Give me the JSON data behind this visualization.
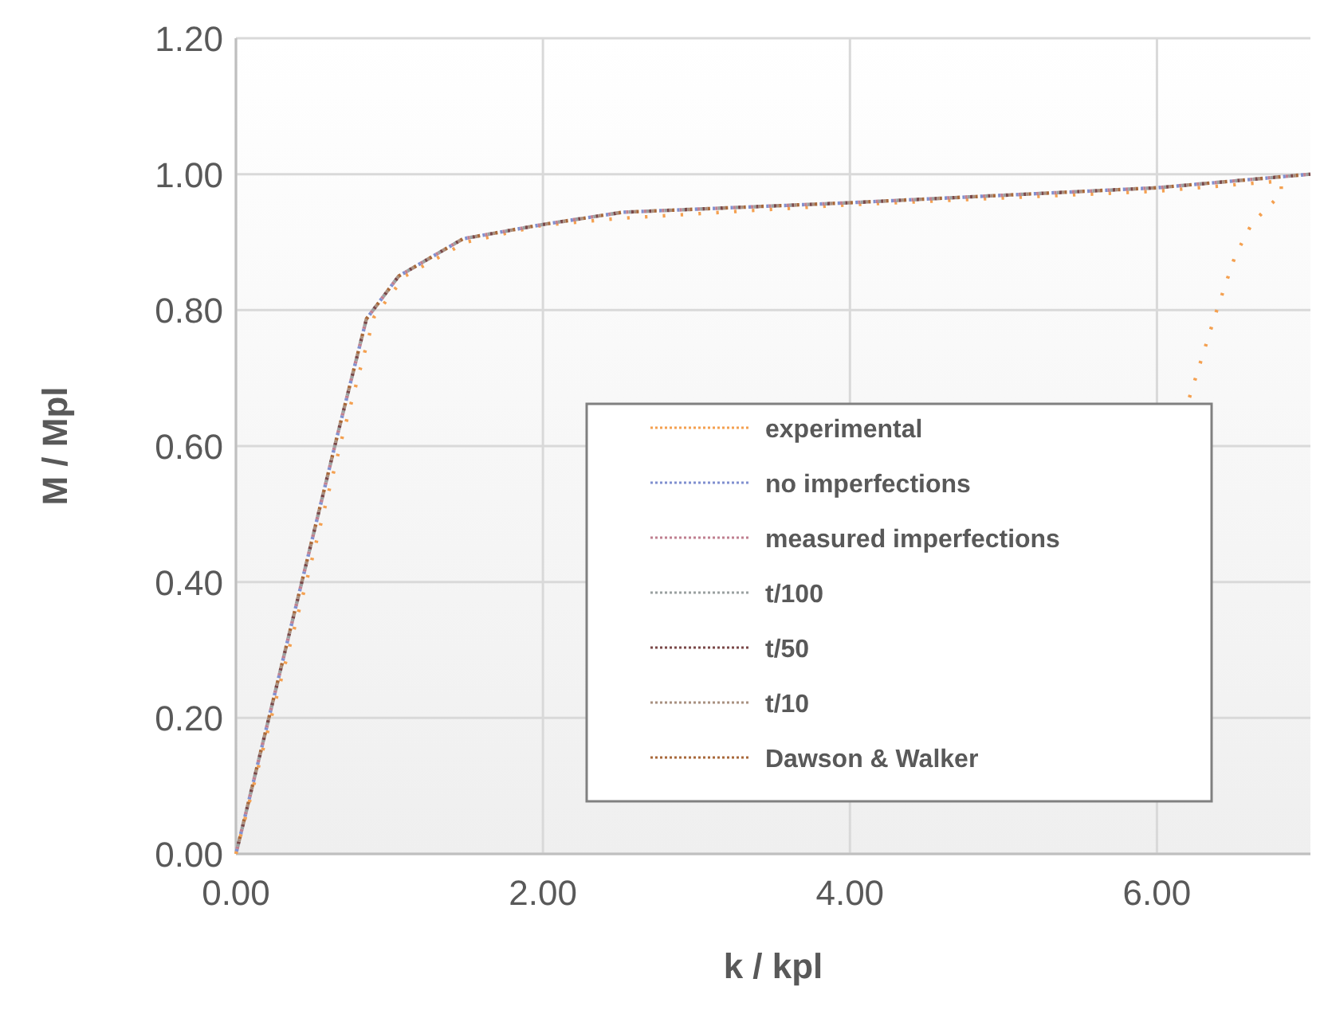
{
  "chart_data": {
    "type": "line",
    "xlabel": "k / kpl",
    "ylabel": "M / Mpl",
    "xlim": [
      0,
      7
    ],
    "ylim": [
      0,
      1.2
    ],
    "xticks": [
      {
        "value": 0,
        "label": "0.00"
      },
      {
        "value": 2,
        "label": "2.00"
      },
      {
        "value": 4,
        "label": "4.00"
      },
      {
        "value": 6,
        "label": "6.00"
      }
    ],
    "yticks": [
      {
        "value": 0,
        "label": "0.00"
      },
      {
        "value": 0.2,
        "label": "0.20"
      },
      {
        "value": 0.4,
        "label": "0.40"
      },
      {
        "value": 0.6,
        "label": "0.60"
      },
      {
        "value": 0.8,
        "label": "0.80"
      },
      {
        "value": 1,
        "label": "1.00"
      },
      {
        "value": 1.2,
        "label": "1.20"
      }
    ],
    "grid": true,
    "legend": "bottom right",
    "line_style": "dotted",
    "marker": "none",
    "series": [
      {
        "name": "experimental",
        "color": "#f4a050",
        "x": [
          0,
          0.47,
          0.7,
          0.9,
          1.1,
          1.5,
          2.0,
          2.5,
          4.0,
          6.0,
          6.81,
          6.81,
          6.62,
          6.51,
          6.39,
          6.2
        ],
        "values": [
          0,
          0.41,
          0.62,
          0.79,
          0.85,
          0.9,
          0.925,
          0.935,
          0.955,
          0.975,
          0.99,
          0.971,
          0.928,
          0.88,
          0.8,
          0.663
        ]
      },
      {
        "name": "no imperfections",
        "color": "#8090d0",
        "x": [
          0,
          0.44,
          0.66,
          0.85,
          1.06,
          1.48,
          2.0,
          2.52,
          4.0,
          6.0,
          7.0
        ],
        "values": [
          0,
          0.41,
          0.615,
          0.787,
          0.85,
          0.905,
          0.926,
          0.944,
          0.958,
          0.98,
          1.0
        ]
      },
      {
        "name": "measured imperfections",
        "color": "#c08090",
        "x": [
          0,
          0.44,
          0.66,
          0.85,
          1.06,
          1.48,
          2.0,
          2.52,
          4.0,
          6.0,
          7.0
        ],
        "values": [
          0,
          0.41,
          0.615,
          0.787,
          0.85,
          0.905,
          0.926,
          0.944,
          0.958,
          0.98,
          1.0
        ]
      },
      {
        "name": "t/100",
        "color": "#9aa0a0",
        "x": [
          0,
          0.44,
          0.66,
          0.85,
          1.06,
          1.48,
          2.0,
          2.52,
          4.0,
          6.0,
          7.0
        ],
        "values": [
          0,
          0.41,
          0.615,
          0.787,
          0.85,
          0.905,
          0.926,
          0.944,
          0.958,
          0.98,
          1.0
        ]
      },
      {
        "name": "t/50",
        "color": "#7a4848",
        "x": [
          0,
          0.44,
          0.66,
          0.85,
          1.06,
          1.48,
          2.0,
          2.52,
          4.0,
          6.0,
          7.0
        ],
        "values": [
          0,
          0.41,
          0.615,
          0.787,
          0.85,
          0.905,
          0.926,
          0.944,
          0.958,
          0.98,
          1.0
        ]
      },
      {
        "name": "t/10",
        "color": "#a89080",
        "x": [
          0,
          0.44,
          0.66,
          0.85,
          1.06,
          1.48,
          2.0,
          2.52,
          4.0,
          6.0,
          7.0
        ],
        "values": [
          0,
          0.41,
          0.615,
          0.787,
          0.85,
          0.905,
          0.926,
          0.944,
          0.958,
          0.98,
          1.0
        ]
      },
      {
        "name": "Dawson & Walker",
        "color": "#a8683a",
        "x": [
          0,
          0.44,
          0.66,
          0.85,
          1.06,
          1.48,
          2.0,
          2.52,
          4.0,
          6.0,
          7.0
        ],
        "values": [
          0,
          0.41,
          0.615,
          0.787,
          0.85,
          0.905,
          0.926,
          0.944,
          0.958,
          0.98,
          1.0
        ]
      }
    ]
  }
}
